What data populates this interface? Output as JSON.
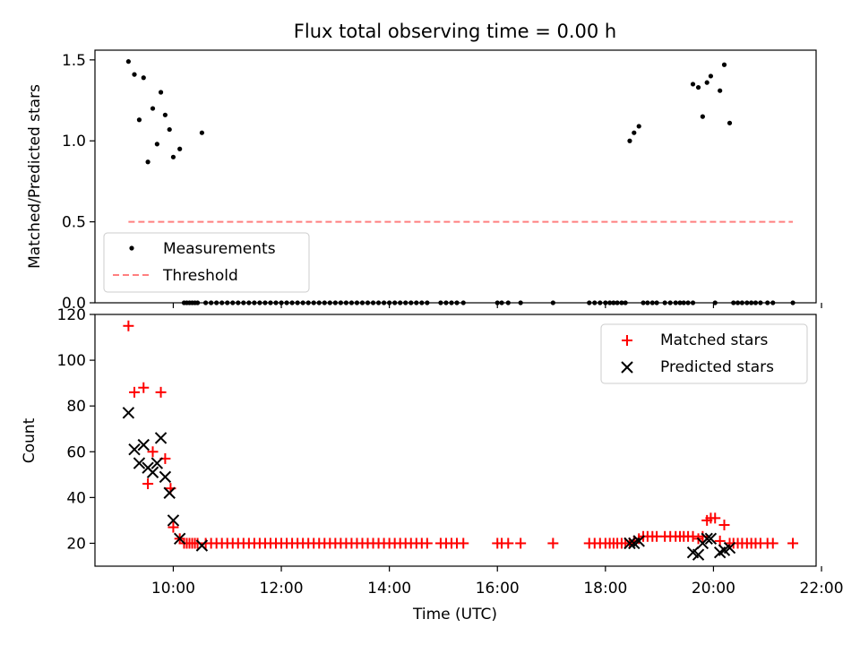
{
  "figure": {
    "title": "Flux total observing time = 0.00 h",
    "xlabel": "Time (UTC)"
  },
  "chart_data": [
    {
      "type": "scatter",
      "ylabel": "Matched/Predicted stars",
      "xlim_hours": [
        8.55,
        21.9
      ],
      "ylim": [
        0,
        1.56
      ],
      "yticks": [
        0.0,
        0.5,
        1.0,
        1.5
      ],
      "grid": false,
      "legend_position": "lower-left",
      "series": [
        {
          "name": "Measurements",
          "marker": "dot",
          "color": "#000000",
          "x_hours": [
            9.17,
            9.28,
            9.37,
            9.45,
            9.53,
            9.62,
            9.7,
            9.77,
            9.85,
            9.93,
            10.0,
            10.12,
            10.53,
            18.45,
            18.53,
            18.62,
            19.62,
            19.72,
            19.8,
            19.88,
            19.95,
            20.12,
            20.2,
            20.3,
            10.2,
            10.25,
            10.3,
            10.35,
            10.4,
            10.45,
            10.6,
            10.7,
            10.8,
            10.9,
            11.0,
            11.1,
            11.2,
            11.3,
            11.4,
            11.5,
            11.6,
            11.7,
            11.8,
            11.9,
            12.0,
            12.1,
            12.2,
            12.3,
            12.4,
            12.5,
            12.6,
            12.7,
            12.8,
            12.9,
            13.0,
            13.1,
            13.2,
            13.3,
            13.4,
            13.5,
            13.6,
            13.7,
            13.8,
            13.9,
            14.0,
            14.1,
            14.2,
            14.3,
            14.4,
            14.5,
            14.6,
            14.7,
            14.95,
            15.05,
            15.15,
            15.25,
            15.37,
            16.0,
            16.08,
            16.2,
            16.43,
            17.03,
            17.7,
            17.8,
            17.9,
            18.0,
            18.08,
            18.15,
            18.22,
            18.3,
            18.37,
            18.7,
            18.78,
            18.87,
            18.95,
            19.1,
            19.2,
            19.3,
            19.38,
            19.45,
            19.53,
            19.62,
            20.03,
            20.37,
            20.45,
            20.53,
            20.62,
            20.7,
            20.78,
            20.87,
            21.0,
            21.1,
            21.47
          ],
          "y": [
            1.49,
            1.41,
            1.13,
            1.39,
            0.87,
            1.2,
            0.98,
            1.3,
            1.16,
            1.07,
            0.9,
            0.95,
            1.05,
            1.0,
            1.05,
            1.09,
            1.35,
            1.33,
            1.15,
            1.36,
            1.4,
            1.31,
            1.47,
            1.11,
            0,
            0,
            0,
            0,
            0,
            0,
            0,
            0,
            0,
            0,
            0,
            0,
            0,
            0,
            0,
            0,
            0,
            0,
            0,
            0,
            0,
            0,
            0,
            0,
            0,
            0,
            0,
            0,
            0,
            0,
            0,
            0,
            0,
            0,
            0,
            0,
            0,
            0,
            0,
            0,
            0,
            0,
            0,
            0,
            0,
            0,
            0,
            0,
            0,
            0,
            0,
            0,
            0,
            0,
            0,
            0,
            0,
            0,
            0,
            0,
            0,
            0,
            0,
            0,
            0,
            0,
            0,
            0,
            0,
            0,
            0,
            0,
            0,
            0,
            0,
            0,
            0,
            0,
            0,
            0,
            0,
            0,
            0,
            0,
            0,
            0,
            0,
            0,
            0
          ]
        },
        {
          "name": "Threshold",
          "type": "line",
          "style": "dashed",
          "color": "#ff7f7f",
          "x_hours": [
            9.17,
            21.47
          ],
          "y": [
            0.5,
            0.5
          ]
        }
      ]
    },
    {
      "type": "scatter",
      "ylabel": "Count",
      "xlim_hours": [
        8.55,
        21.9
      ],
      "ylim": [
        10,
        120
      ],
      "yticks": [
        20,
        40,
        60,
        80,
        100,
        120
      ],
      "xticks": [
        "10:00",
        "12:00",
        "14:00",
        "16:00",
        "18:00",
        "20:00",
        "22:00"
      ],
      "xtick_hours": [
        10,
        12,
        14,
        16,
        18,
        20,
        22
      ],
      "grid": false,
      "legend_position": "upper-right",
      "series": [
        {
          "name": "Matched stars",
          "marker": "plus",
          "color": "#ff0000",
          "x_hours": [
            9.17,
            9.28,
            9.45,
            9.53,
            9.62,
            9.77,
            9.85,
            9.95,
            10.0,
            10.12,
            10.2,
            10.25,
            10.3,
            10.35,
            10.4,
            10.45,
            10.6,
            10.7,
            10.8,
            10.9,
            11.0,
            11.1,
            11.2,
            11.3,
            11.4,
            11.5,
            11.6,
            11.7,
            11.8,
            11.9,
            12.0,
            12.1,
            12.2,
            12.3,
            12.4,
            12.5,
            12.6,
            12.7,
            12.8,
            12.9,
            13.0,
            13.1,
            13.2,
            13.3,
            13.4,
            13.5,
            13.6,
            13.7,
            13.8,
            13.9,
            14.0,
            14.1,
            14.2,
            14.3,
            14.4,
            14.5,
            14.6,
            14.7,
            14.95,
            15.05,
            15.15,
            15.25,
            15.37,
            16.0,
            16.08,
            16.2,
            16.43,
            17.03,
            17.7,
            17.8,
            17.9,
            18.0,
            18.08,
            18.15,
            18.22,
            18.3,
            18.37,
            18.45,
            18.53,
            18.62,
            18.7,
            18.78,
            18.87,
            18.95,
            19.1,
            19.2,
            19.3,
            19.38,
            19.45,
            19.53,
            19.62,
            19.72,
            19.8,
            19.88,
            19.95,
            20.03,
            20.12,
            20.2,
            20.3,
            20.37,
            20.45,
            20.53,
            20.62,
            20.7,
            20.78,
            20.87,
            21.0,
            21.1,
            21.47
          ],
          "y": [
            115,
            86,
            88,
            46,
            60,
            86,
            57,
            44,
            27,
            22,
            20,
            20,
            20,
            20,
            20,
            20,
            20,
            20,
            20,
            20,
            20,
            20,
            20,
            20,
            20,
            20,
            20,
            20,
            20,
            20,
            20,
            20,
            20,
            20,
            20,
            20,
            20,
            20,
            20,
            20,
            20,
            20,
            20,
            20,
            20,
            20,
            20,
            20,
            20,
            20,
            20,
            20,
            20,
            20,
            20,
            20,
            20,
            20,
            20,
            20,
            20,
            20,
            20,
            20,
            20,
            20,
            20,
            20,
            20,
            20,
            20,
            20,
            20,
            20,
            20,
            20,
            20,
            20,
            21,
            22,
            23,
            23,
            23,
            23,
            23,
            23,
            23,
            23,
            23,
            23,
            23,
            22,
            23,
            30,
            31,
            31,
            21,
            28,
            20,
            20,
            20,
            20,
            20,
            20,
            20,
            20,
            20,
            20,
            20
          ]
        },
        {
          "name": "Predicted stars",
          "marker": "x",
          "color": "#000000",
          "x_hours": [
            9.17,
            9.28,
            9.37,
            9.45,
            9.53,
            9.62,
            9.7,
            9.77,
            9.85,
            9.93,
            10.0,
            10.12,
            10.53,
            18.45,
            18.53,
            18.62,
            19.62,
            19.72,
            19.8,
            19.88,
            19.95,
            20.12,
            20.2,
            20.3
          ],
          "y": [
            77,
            61,
            55,
            63,
            53,
            51,
            55,
            66,
            49,
            42,
            30,
            22,
            19,
            20,
            20,
            21,
            16,
            15,
            20,
            22,
            22,
            16,
            17,
            18
          ]
        }
      ]
    }
  ]
}
